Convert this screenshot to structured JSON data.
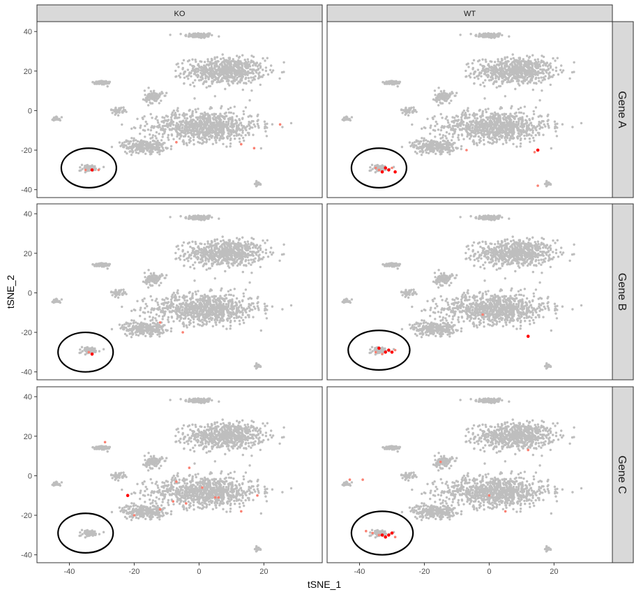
{
  "chart_data": {
    "type": "scatter",
    "xlabel": "tSNE_1",
    "ylabel": "tSNE_2",
    "xlim": [
      -50,
      38
    ],
    "ylim": [
      -44,
      45
    ],
    "x_ticks": [
      -40,
      -20,
      0,
      20
    ],
    "y_ticks": [
      40,
      20,
      0,
      -20,
      -40
    ],
    "column_facets": [
      "KO",
      "WT"
    ],
    "row_facets": [
      "Gene A",
      "Gene B",
      "Gene C"
    ],
    "point_color": "#bebebe",
    "highlight_colors": [
      "#ff0000",
      "#fa8072"
    ],
    "clusters": [
      {
        "cx": 0,
        "cy": 38,
        "sx": 4,
        "sy": 1.2,
        "share": 0.04
      },
      {
        "cx": 8,
        "cy": 20,
        "sx": 11,
        "sy": 6,
        "share": 0.25
      },
      {
        "cx": 2,
        "cy": -8,
        "sx": 15,
        "sy": 7,
        "share": 0.32
      },
      {
        "cx": -17,
        "cy": -18,
        "sx": 6,
        "sy": 3,
        "share": 0.09
      },
      {
        "cx": -30,
        "cy": 14,
        "sx": 2.5,
        "sy": 1.2,
        "share": 0.025
      },
      {
        "cx": -14,
        "cy": 7,
        "sx": 2.5,
        "sy": 3,
        "share": 0.035
      },
      {
        "cx": -25,
        "cy": 0,
        "sx": 2,
        "sy": 1.5,
        "share": 0.015
      },
      {
        "cx": -44,
        "cy": -4,
        "sx": 1.2,
        "sy": 1,
        "share": 0.008
      },
      {
        "cx": -34,
        "cy": -29,
        "sx": 3,
        "sy": 1.5,
        "share": 0.025
      },
      {
        "cx": 18,
        "cy": -37,
        "sx": 1.2,
        "sy": 1,
        "share": 0.01
      }
    ],
    "panels": [
      {
        "row": 0,
        "col": 0,
        "ellipse": {
          "cx": -34,
          "cy": -29,
          "rx": 8.5,
          "ry": 10
        },
        "highlights": [
          [
            -33,
            -30,
            0
          ],
          [
            -31,
            -30,
            1
          ],
          [
            -35,
            -30,
            1
          ],
          [
            -7,
            -16,
            1
          ],
          [
            13,
            -17,
            1
          ],
          [
            25,
            -7,
            1
          ],
          [
            17,
            -19,
            1
          ]
        ]
      },
      {
        "row": 0,
        "col": 1,
        "ellipse": {
          "cx": -34,
          "cy": -29,
          "rx": 8.5,
          "ry": 10
        },
        "highlights": [
          [
            -31,
            -30,
            0
          ],
          [
            -32,
            -29,
            0
          ],
          [
            -33,
            -31,
            0
          ],
          [
            -29,
            -31,
            0
          ],
          [
            -34,
            -30,
            1
          ],
          [
            -30,
            -29,
            1
          ],
          [
            -35,
            -29,
            1
          ],
          [
            15,
            -20,
            0
          ],
          [
            14,
            -21,
            1
          ],
          [
            -7,
            -20,
            1
          ],
          [
            15,
            -38,
            1
          ]
        ]
      },
      {
        "row": 1,
        "col": 0,
        "ellipse": {
          "cx": -35,
          "cy": -30,
          "rx": 8.5,
          "ry": 10
        },
        "highlights": [
          [
            -33,
            -31,
            0
          ],
          [
            -34,
            -30,
            1
          ],
          [
            -12,
            -15,
            1
          ],
          [
            -5,
            -20,
            1
          ]
        ]
      },
      {
        "row": 1,
        "col": 1,
        "ellipse": {
          "cx": -34,
          "cy": -29,
          "rx": 9.5,
          "ry": 10
        },
        "highlights": [
          [
            -31,
            -29,
            0
          ],
          [
            -32,
            -30,
            0
          ],
          [
            -34,
            -28,
            0
          ],
          [
            -30,
            -30,
            0
          ],
          [
            -33,
            -31,
            1
          ],
          [
            -35,
            -30,
            1
          ],
          [
            -29,
            -29,
            1
          ],
          [
            12,
            -22,
            0
          ],
          [
            -2,
            -11,
            1
          ]
        ]
      },
      {
        "row": 2,
        "col": 0,
        "ellipse": {
          "cx": -35,
          "cy": -29,
          "rx": 8.5,
          "ry": 10
        },
        "highlights": [
          [
            -22,
            -10,
            0
          ],
          [
            -7,
            -3,
            1
          ],
          [
            -4,
            -14,
            1
          ],
          [
            1,
            -6,
            1
          ],
          [
            5,
            -11,
            1
          ],
          [
            -8,
            -13,
            1
          ],
          [
            -3,
            4,
            1
          ],
          [
            13,
            -18,
            1
          ],
          [
            18,
            -10,
            1
          ],
          [
            -29,
            17,
            1
          ],
          [
            -12,
            -17,
            1
          ],
          [
            -20,
            -20,
            1
          ],
          [
            6,
            -11,
            1
          ]
        ]
      },
      {
        "row": 2,
        "col": 1,
        "ellipse": {
          "cx": -33,
          "cy": -29,
          "rx": 9.5,
          "ry": 11
        },
        "highlights": [
          [
            -31,
            -30,
            0
          ],
          [
            -32,
            -31,
            0
          ],
          [
            -33,
            -30,
            0
          ],
          [
            -30,
            -29,
            0
          ],
          [
            -34,
            -30,
            1
          ],
          [
            -36,
            -29,
            1
          ],
          [
            -29,
            -31,
            1
          ],
          [
            -38,
            -28,
            1
          ],
          [
            -15,
            7,
            1
          ],
          [
            12,
            13,
            1
          ],
          [
            0,
            -10,
            1
          ],
          [
            -43,
            -2,
            1
          ],
          [
            5,
            -18,
            1
          ],
          [
            -39,
            -2,
            1
          ]
        ]
      }
    ]
  }
}
